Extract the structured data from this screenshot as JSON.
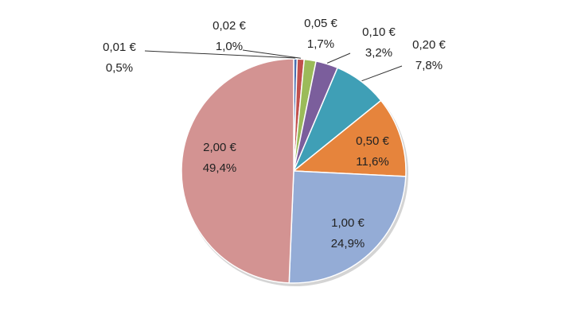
{
  "chart_data": {
    "type": "pie",
    "title": "",
    "legend": "none",
    "slices": [
      {
        "label": "0,01 €",
        "percent_label": "0,5%",
        "value": 0.5,
        "color": "#4a6fb0"
      },
      {
        "label": "0,02 €",
        "percent_label": "1,0%",
        "value": 1.0,
        "color": "#c0504d"
      },
      {
        "label": "0,05 €",
        "percent_label": "1,7%",
        "value": 1.7,
        "color": "#9bbb59"
      },
      {
        "label": "0,10 €",
        "percent_label": "3,2%",
        "value": 3.2,
        "color": "#7b5e9c"
      },
      {
        "label": "0,20 €",
        "percent_label": "7,8%",
        "value": 7.8,
        "color": "#3f9fb6"
      },
      {
        "label": "0,50 €",
        "percent_label": "11,6%",
        "value": 11.6,
        "color": "#e6843c"
      },
      {
        "label": "1,00 €",
        "percent_label": "24,9%",
        "value": 24.9,
        "color": "#94acd6"
      },
      {
        "label": "2,00 €",
        "percent_label": "49,4%",
        "value": 49.4,
        "color": "#d39392"
      }
    ]
  }
}
